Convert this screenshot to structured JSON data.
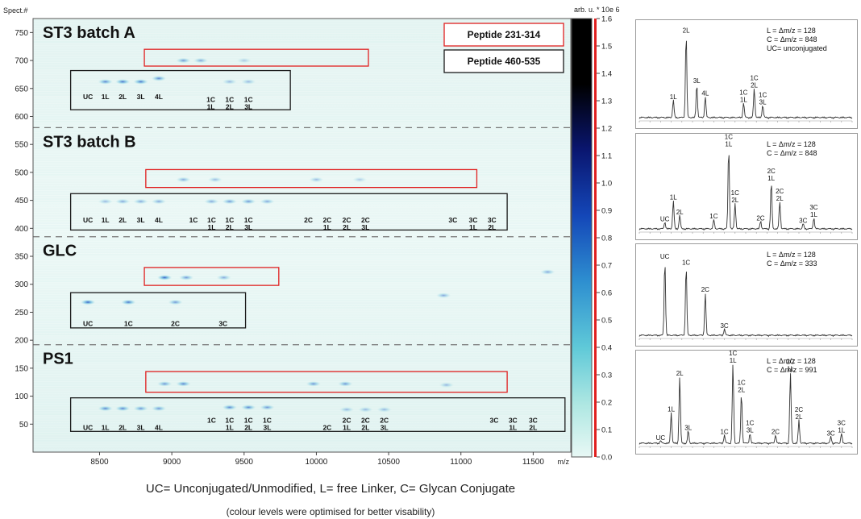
{
  "heatmap": {
    "y_axis_label": "Spect.#",
    "x_axis_unit": "m/z",
    "x_ticks": [
      8500,
      9000,
      9500,
      10000,
      10500,
      11000,
      11500
    ],
    "y_ticks": [
      50,
      100,
      150,
      200,
      250,
      300,
      350,
      400,
      450,
      500,
      550,
      600,
      650,
      700,
      750
    ],
    "sections": [
      {
        "title": "ST3 batch A",
        "labels": [
          {
            "text": "UC",
            "x": 8420,
            "y": 635
          },
          {
            "text": "1L",
            "x": 8540,
            "y": 635
          },
          {
            "text": "2L",
            "x": 8660,
            "y": 635
          },
          {
            "text": "3L",
            "x": 8785,
            "y": 635
          },
          {
            "text": "4L",
            "x": 8910,
            "y": 635
          },
          {
            "text": "1C",
            "x": 9270,
            "y": 630
          },
          {
            "text": "1L",
            "x": 9270,
            "y": 617
          },
          {
            "text": "1C",
            "x": 9400,
            "y": 630
          },
          {
            "text": "2L",
            "x": 9400,
            "y": 617
          },
          {
            "text": "1C",
            "x": 9530,
            "y": 630
          },
          {
            "text": "3L",
            "x": 9530,
            "y": 617
          }
        ]
      },
      {
        "title": "ST3 batch B",
        "labels": [
          {
            "text": "UC",
            "x": 8420,
            "y": 415
          },
          {
            "text": "1L",
            "x": 8540,
            "y": 415
          },
          {
            "text": "2L",
            "x": 8660,
            "y": 415
          },
          {
            "text": "3L",
            "x": 8785,
            "y": 415
          },
          {
            "text": "4L",
            "x": 8910,
            "y": 415
          },
          {
            "text": "1C",
            "x": 9150,
            "y": 415
          },
          {
            "text": "1C",
            "x": 9275,
            "y": 415
          },
          {
            "text": "1L",
            "x": 9275,
            "y": 402
          },
          {
            "text": "1C",
            "x": 9400,
            "y": 415
          },
          {
            "text": "2L",
            "x": 9400,
            "y": 402
          },
          {
            "text": "1C",
            "x": 9530,
            "y": 415
          },
          {
            "text": "3L",
            "x": 9530,
            "y": 402
          },
          {
            "text": "2C",
            "x": 9945,
            "y": 415
          },
          {
            "text": "2C",
            "x": 10075,
            "y": 415
          },
          {
            "text": "1L",
            "x": 10075,
            "y": 402
          },
          {
            "text": "2C",
            "x": 10210,
            "y": 415
          },
          {
            "text": "2L",
            "x": 10210,
            "y": 402
          },
          {
            "text": "2C",
            "x": 10340,
            "y": 415
          },
          {
            "text": "3L",
            "x": 10340,
            "y": 402
          },
          {
            "text": "3C",
            "x": 10945,
            "y": 415
          },
          {
            "text": "3C",
            "x": 11085,
            "y": 415
          },
          {
            "text": "1L",
            "x": 11085,
            "y": 402
          },
          {
            "text": "3C",
            "x": 11215,
            "y": 415
          },
          {
            "text": "2L",
            "x": 11215,
            "y": 402
          }
        ]
      },
      {
        "title": "GLC",
        "labels": [
          {
            "text": "UC",
            "x": 8420,
            "y": 230
          },
          {
            "text": "1C",
            "x": 8700,
            "y": 230
          },
          {
            "text": "2C",
            "x": 9025,
            "y": 230
          },
          {
            "text": "3C",
            "x": 9355,
            "y": 230
          }
        ]
      },
      {
        "title": "PS1",
        "labels": [
          {
            "text": "UC",
            "x": 8420,
            "y": 44
          },
          {
            "text": "1L",
            "x": 8540,
            "y": 44
          },
          {
            "text": "2L",
            "x": 8660,
            "y": 44
          },
          {
            "text": "3L",
            "x": 8785,
            "y": 44
          },
          {
            "text": "4L",
            "x": 8910,
            "y": 44
          },
          {
            "text": "1C",
            "x": 9275,
            "y": 57
          },
          {
            "text": "1C",
            "x": 9400,
            "y": 57
          },
          {
            "text": "1L",
            "x": 9400,
            "y": 44
          },
          {
            "text": "1C",
            "x": 9530,
            "y": 57
          },
          {
            "text": "2L",
            "x": 9530,
            "y": 44
          },
          {
            "text": "1C",
            "x": 9660,
            "y": 57
          },
          {
            "text": "3L",
            "x": 9660,
            "y": 44
          },
          {
            "text": "2C",
            "x": 10075,
            "y": 44
          },
          {
            "text": "2C",
            "x": 10210,
            "y": 57
          },
          {
            "text": "1L",
            "x": 10210,
            "y": 44
          },
          {
            "text": "2C",
            "x": 10340,
            "y": 57
          },
          {
            "text": "2L",
            "x": 10340,
            "y": 44
          },
          {
            "text": "2C",
            "x": 10470,
            "y": 57
          },
          {
            "text": "3L",
            "x": 10470,
            "y": 44
          },
          {
            "text": "3C",
            "x": 11230,
            "y": 57
          },
          {
            "text": "3C",
            "x": 11360,
            "y": 57
          },
          {
            "text": "1L",
            "x": 11360,
            "y": 44
          },
          {
            "text": "3C",
            "x": 11500,
            "y": 57
          },
          {
            "text": "2L",
            "x": 11500,
            "y": 44
          }
        ]
      }
    ],
    "legend": {
      "red_label": "Peptide 231-314",
      "black_label": "Peptide 460-535",
      "red_color": "#e02020",
      "black_color": "#1a1a1a"
    },
    "colorbar": {
      "title": "arb. u. * 10e 6",
      "ticks": [
        0.0,
        0.1,
        0.2,
        0.3,
        0.4,
        0.5,
        0.6,
        0.7,
        0.8,
        0.9,
        1.0,
        1.1,
        1.2,
        1.3,
        1.4,
        1.5,
        1.6
      ],
      "range": [
        0.0,
        1.6
      ],
      "colors": [
        "#e8f8f5",
        "#aee7e2",
        "#5fc9d8",
        "#2e8fd0",
        "#1447b8",
        "#0a1670",
        "#000000"
      ]
    }
  },
  "spectra": [
    {
      "legend": [
        "L = Δm/z = 128",
        "C = Δm/z = 848",
        "UC= unconjugated"
      ],
      "peaks": [
        {
          "label": "1L",
          "x": 0.16,
          "h": 0.2
        },
        {
          "label": "2L",
          "x": 0.22,
          "h": 0.95
        },
        {
          "label": "3L",
          "x": 0.27,
          "h": 0.38
        },
        {
          "label": "4L",
          "x": 0.31,
          "h": 0.24
        },
        {
          "label": "1C\n1L",
          "x": 0.49,
          "h": 0.17
        },
        {
          "label": "1C\n2L",
          "x": 0.54,
          "h": 0.33
        },
        {
          "label": "1C\n3L",
          "x": 0.58,
          "h": 0.14
        }
      ]
    },
    {
      "legend": [
        "L = Δm/z = 128",
        "C = Δm/z = 848"
      ],
      "peaks": [
        {
          "label": "UC",
          "x": 0.12,
          "h": 0.08
        },
        {
          "label": "1L",
          "x": 0.16,
          "h": 0.33
        },
        {
          "label": "2L",
          "x": 0.19,
          "h": 0.16
        },
        {
          "label": "1C",
          "x": 0.35,
          "h": 0.11
        },
        {
          "label": "1C\n1L",
          "x": 0.42,
          "h": 0.95
        },
        {
          "label": "1C\n2L",
          "x": 0.45,
          "h": 0.3
        },
        {
          "label": "2C",
          "x": 0.57,
          "h": 0.09
        },
        {
          "label": "2C\n1L",
          "x": 0.62,
          "h": 0.55
        },
        {
          "label": "2C\n2L",
          "x": 0.66,
          "h": 0.32
        },
        {
          "label": "3C",
          "x": 0.77,
          "h": 0.06
        },
        {
          "label": "3C\n1L",
          "x": 0.82,
          "h": 0.13
        }
      ]
    },
    {
      "legend": [
        "L = Δm/z = 128",
        "C = Δm/z = 333"
      ],
      "peaks": [
        {
          "label": "UC",
          "x": 0.12,
          "h": 0.92
        },
        {
          "label": "1C",
          "x": 0.22,
          "h": 0.85
        },
        {
          "label": "2C",
          "x": 0.31,
          "h": 0.52
        },
        {
          "label": "3C",
          "x": 0.4,
          "h": 0.08
        }
      ]
    },
    {
      "legend": [
        "L = Δm/z = 128",
        "C = Δm/z = 991"
      ],
      "peaks": [
        {
          "label": "UC",
          "x": 0.1,
          "h": 0.03
        },
        {
          "label": "1L",
          "x": 0.15,
          "h": 0.37
        },
        {
          "label": "2L",
          "x": 0.19,
          "h": 0.8
        },
        {
          "label": "3L",
          "x": 0.23,
          "h": 0.15
        },
        {
          "label": "1C",
          "x": 0.4,
          "h": 0.1
        },
        {
          "label": "1C\n1L",
          "x": 0.44,
          "h": 0.95
        },
        {
          "label": "1C\n2L",
          "x": 0.48,
          "h": 0.6
        },
        {
          "label": "1C\n3L",
          "x": 0.52,
          "h": 0.12
        },
        {
          "label": "2C",
          "x": 0.64,
          "h": 0.1
        },
        {
          "label": "2C\n1L",
          "x": 0.71,
          "h": 0.85
        },
        {
          "label": "2C\n2L",
          "x": 0.75,
          "h": 0.28
        },
        {
          "label": "3C",
          "x": 0.9,
          "h": 0.08
        },
        {
          "label": "3C\n1L",
          "x": 0.95,
          "h": 0.12
        }
      ]
    }
  ],
  "caption": {
    "line1": "UC= Unconjugated/Unmodified, L=  free Linker, C= Glycan Conjugate",
    "line2": "(colour levels were optimised for better visability)"
  },
  "chart_data": [
    {
      "type": "heatmap",
      "title": "",
      "xlabel": "m/z",
      "ylabel": "Spect.#",
      "xlim": [
        8040,
        11760
      ],
      "ylim": [
        0,
        775
      ],
      "zlim": [
        0.0,
        1.6
      ],
      "series": [
        {
          "name": "ST3 batch A",
          "spectrum_range": [
            580,
            775
          ]
        },
        {
          "name": "ST3 batch B",
          "spectrum_range": [
            385,
            580
          ]
        },
        {
          "name": "GLC",
          "spectrum_range": [
            192,
            385
          ]
        },
        {
          "name": "PS1",
          "spectrum_range": [
            0,
            192
          ]
        }
      ],
      "legend": [
        "Peptide 231-314",
        "Peptide 460-535"
      ]
    },
    {
      "type": "line",
      "title": "",
      "legend": [
        "L = Δm/z = 128",
        "C = Δm/z = 848",
        "UC= unconjugated"
      ]
    },
    {
      "type": "line",
      "title": "",
      "legend": [
        "L = Δm/z = 128",
        "C = Δm/z = 848"
      ]
    },
    {
      "type": "line",
      "title": "",
      "legend": [
        "L = Δm/z = 128",
        "C = Δm/z = 333"
      ]
    },
    {
      "type": "line",
      "title": "",
      "legend": [
        "L = Δm/z = 128",
        "C = Δm/z = 991"
      ]
    }
  ]
}
